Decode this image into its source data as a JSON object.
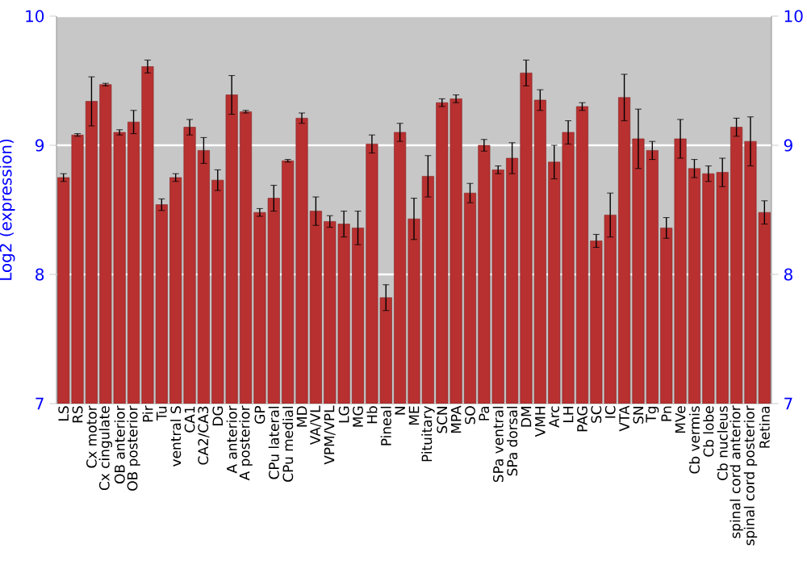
{
  "chart_data": {
    "type": "bar",
    "ylabel": "Log2 (expression)",
    "categories": [
      "LS",
      "RS",
      "Cx motor",
      "Cx cingulate",
      "OB anterior",
      "OB posterior",
      "Pir",
      "Tu",
      "ventral S",
      "CA1",
      "CA2/CA3",
      "DG",
      "A anterior",
      "A posterior",
      "GP",
      "CPu lateral",
      "CPu medial",
      "MD",
      "VA/VL",
      "VPM/VPL",
      "LG",
      "MG",
      "Hb",
      "Pineal",
      "N",
      "ME",
      "Pituitary",
      "SCN",
      "MPA",
      "SO",
      "Pa",
      "SPa ventral",
      "SPa dorsal",
      "DM",
      "VMH",
      "Arc",
      "LH",
      "PAG",
      "SC",
      "IC",
      "VTA",
      "SN",
      "Tg",
      "Pn",
      "MVe",
      "Cb vermis",
      "Cb lobe",
      "Cb nucleus",
      "spinal cord anterior",
      "spinal cord posterior",
      "Retina"
    ],
    "values": [
      8.75,
      9.08,
      9.34,
      9.47,
      9.1,
      9.18,
      9.61,
      8.54,
      8.75,
      9.14,
      8.96,
      8.73,
      9.39,
      9.26,
      8.48,
      8.59,
      8.88,
      9.21,
      8.49,
      8.41,
      8.39,
      8.36,
      9.01,
      7.82,
      9.1,
      8.43,
      8.76,
      9.33,
      9.36,
      8.63,
      9.0,
      8.81,
      8.9,
      9.56,
      9.35,
      8.87,
      9.1,
      9.3,
      8.26,
      8.46,
      9.37,
      9.05,
      8.96,
      8.36,
      9.05,
      8.82,
      8.78,
      8.79,
      9.14,
      9.03,
      8.48
    ],
    "errors": [
      0.03,
      0.01,
      0.19,
      0.01,
      0.02,
      0.09,
      0.05,
      0.045,
      0.03,
      0.06,
      0.1,
      0.08,
      0.15,
      0.01,
      0.03,
      0.1,
      0.01,
      0.04,
      0.11,
      0.045,
      0.1,
      0.13,
      0.07,
      0.1,
      0.07,
      0.16,
      0.16,
      0.03,
      0.03,
      0.075,
      0.045,
      0.03,
      0.12,
      0.1,
      0.08,
      0.13,
      0.09,
      0.03,
      0.05,
      0.17,
      0.18,
      0.23,
      0.07,
      0.08,
      0.15,
      0.07,
      0.06,
      0.11,
      0.07,
      0.19,
      0.09
    ],
    "color": "#b83030",
    "ylim": [
      7,
      10
    ],
    "yticks": [
      7,
      8,
      9,
      10
    ],
    "y2lim": [
      7,
      10
    ],
    "y2ticks": [
      7,
      8,
      9,
      10
    ],
    "grid": "y"
  }
}
